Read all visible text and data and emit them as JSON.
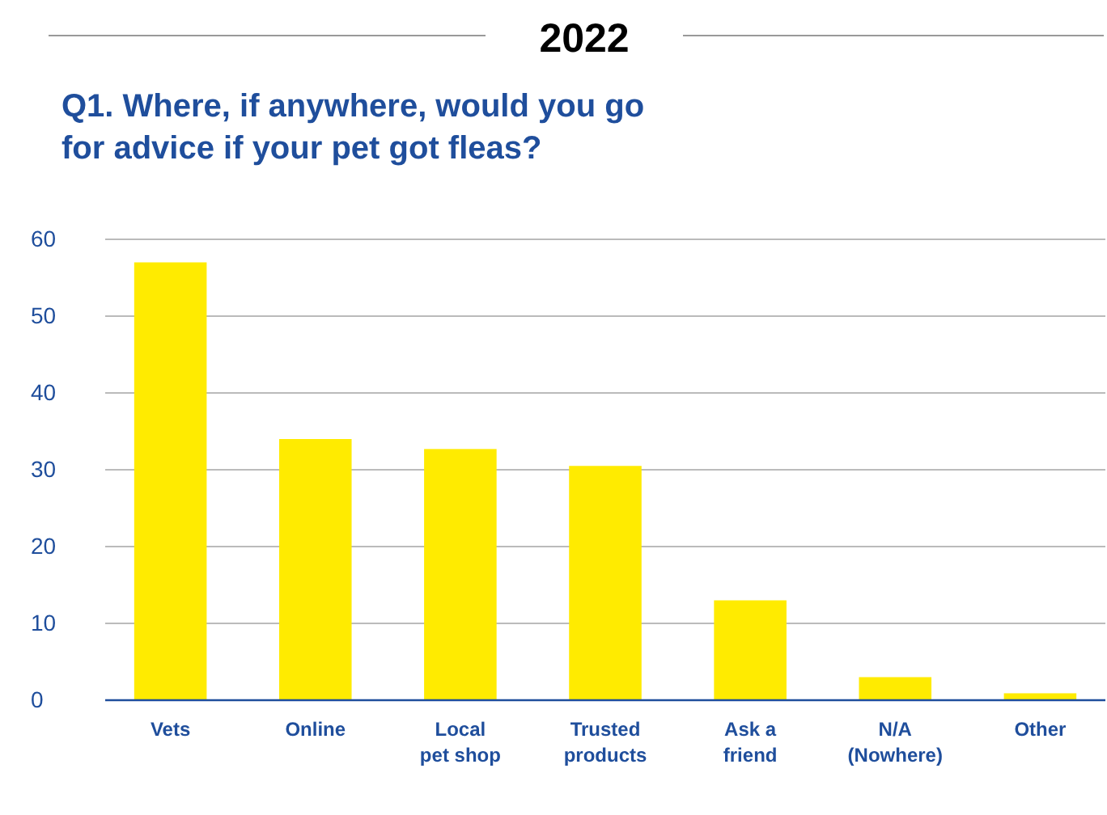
{
  "chart_data": {
    "type": "bar",
    "title": "2022",
    "subtitle": "Q1. Where, if anywhere, would you go for advice if your pet got fleas?",
    "categories": [
      "Vets",
      "Online",
      "Local pet shop",
      "Trusted products",
      "Ask a friend",
      "N/A (Nowhere)",
      "Other"
    ],
    "values": [
      57,
      34,
      32.7,
      30.5,
      13,
      3,
      0.9
    ],
    "color": "#ffeb00",
    "ylim": [
      0,
      60
    ],
    "yticks": [
      0,
      10,
      20,
      30,
      40,
      50,
      60
    ],
    "grid": "y"
  }
}
